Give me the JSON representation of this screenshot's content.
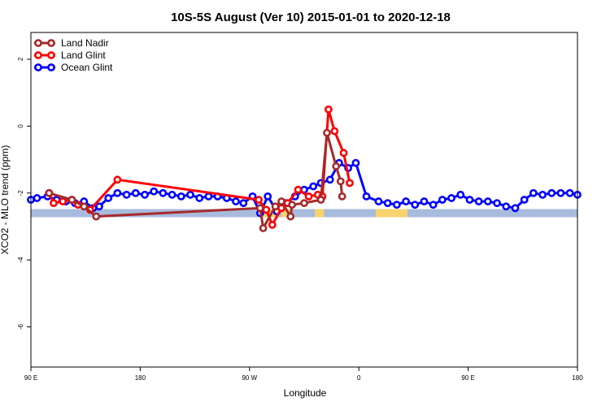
{
  "chart_data": {
    "type": "line",
    "title": "10S-5S August (Ver 10)   2015-01-01 to 2020-12-18",
    "xlabel": "Longitude",
    "ylabel": "XCO2 - MLO trend (ppm)",
    "xlim": [
      90,
      450
    ],
    "ylim": [
      -7.2,
      2.8
    ],
    "x_ticks": [
      {
        "value": 90,
        "label": "90 E"
      },
      {
        "value": 162,
        "label": "180"
      },
      {
        "value": 234,
        "label": "90 W"
      },
      {
        "value": 306,
        "label": "0"
      },
      {
        "value": 378,
        "label": "90 E"
      },
      {
        "value": 450,
        "label": "180"
      }
    ],
    "y_ticks": [
      {
        "value": 2,
        "label": "2"
      },
      {
        "value": 0,
        "label": "0"
      },
      {
        "value": -2,
        "label": "-2"
      },
      {
        "value": -4,
        "label": "-4"
      },
      {
        "value": -6,
        "label": "-6"
      }
    ],
    "legend_position": "top-left",
    "land_band": {
      "y_center": -2.6,
      "ocean_color": "#a7bcdc",
      "land_color": "#f8d36d",
      "land_segments": [
        [
          241,
          252
        ],
        [
          255,
          261
        ],
        [
          277,
          283
        ],
        [
          317,
          338
        ]
      ]
    },
    "series": [
      {
        "name": "Land Nadir",
        "color": "#a52a2a",
        "x": [
          102,
          117,
          125,
          133,
          241,
          243,
          251,
          255,
          261,
          262,
          270,
          281,
          285,
          291,
          294,
          295
        ],
        "y": [
          -2.0,
          -2.2,
          -2.4,
          -2.7,
          -2.45,
          -3.05,
          -2.4,
          -2.25,
          -2.7,
          -2.35,
          -2.3,
          -2.2,
          -0.2,
          -1.2,
          -1.65,
          -2.1
        ]
      },
      {
        "name": "Land Glint",
        "color": "#ff0000",
        "x": [
          102,
          105,
          111,
          117,
          121,
          129,
          147,
          240,
          245,
          249,
          255,
          259,
          266,
          273,
          279,
          282,
          286,
          290,
          296,
          300
        ],
        "y": [
          -2.0,
          -2.3,
          -2.25,
          -2.2,
          -2.35,
          -2.5,
          -1.6,
          -2.2,
          -2.5,
          -2.95,
          -2.45,
          -2.3,
          -1.9,
          -2.1,
          -2.05,
          -2.1,
          0.5,
          -0.15,
          -0.8,
          -1.7
        ]
      },
      {
        "name": "Ocean Glint",
        "color": "#0000ff",
        "x": [
          90,
          94,
          101,
          107,
          113,
          119,
          125,
          131,
          135,
          141,
          147,
          153,
          159,
          165,
          171,
          177,
          183,
          189,
          195,
          201,
          207,
          213,
          219,
          225,
          230,
          236,
          241,
          246,
          252,
          258,
          264,
          270,
          276,
          281,
          287,
          293,
          299,
          304,
          311,
          319,
          325,
          331,
          337,
          343,
          349,
          355,
          361,
          367,
          373,
          379,
          385,
          391,
          397,
          403,
          409,
          415,
          421,
          427,
          433,
          439,
          445,
          450
        ],
        "y": [
          -2.2,
          -2.15,
          -2.1,
          -2.2,
          -2.25,
          -2.3,
          -2.25,
          -2.45,
          -2.4,
          -2.15,
          -2.0,
          -2.05,
          -2.0,
          -2.05,
          -1.95,
          -2.0,
          -2.05,
          -2.1,
          -2.05,
          -2.15,
          -2.1,
          -2.1,
          -2.15,
          -2.25,
          -2.3,
          -2.1,
          -2.6,
          -2.1,
          -2.55,
          -2.3,
          -2.1,
          -1.9,
          -1.8,
          -1.7,
          -1.6,
          -1.1,
          -1.25,
          -1.1,
          -2.1,
          -2.25,
          -2.3,
          -2.35,
          -2.25,
          -2.35,
          -2.25,
          -2.35,
          -2.2,
          -2.15,
          -2.05,
          -2.2,
          -2.25,
          -2.25,
          -2.3,
          -2.4,
          -2.45,
          -2.2,
          -2.0,
          -2.05,
          -2.0,
          -2.0,
          -2.0,
          -2.05
        ]
      }
    ]
  }
}
